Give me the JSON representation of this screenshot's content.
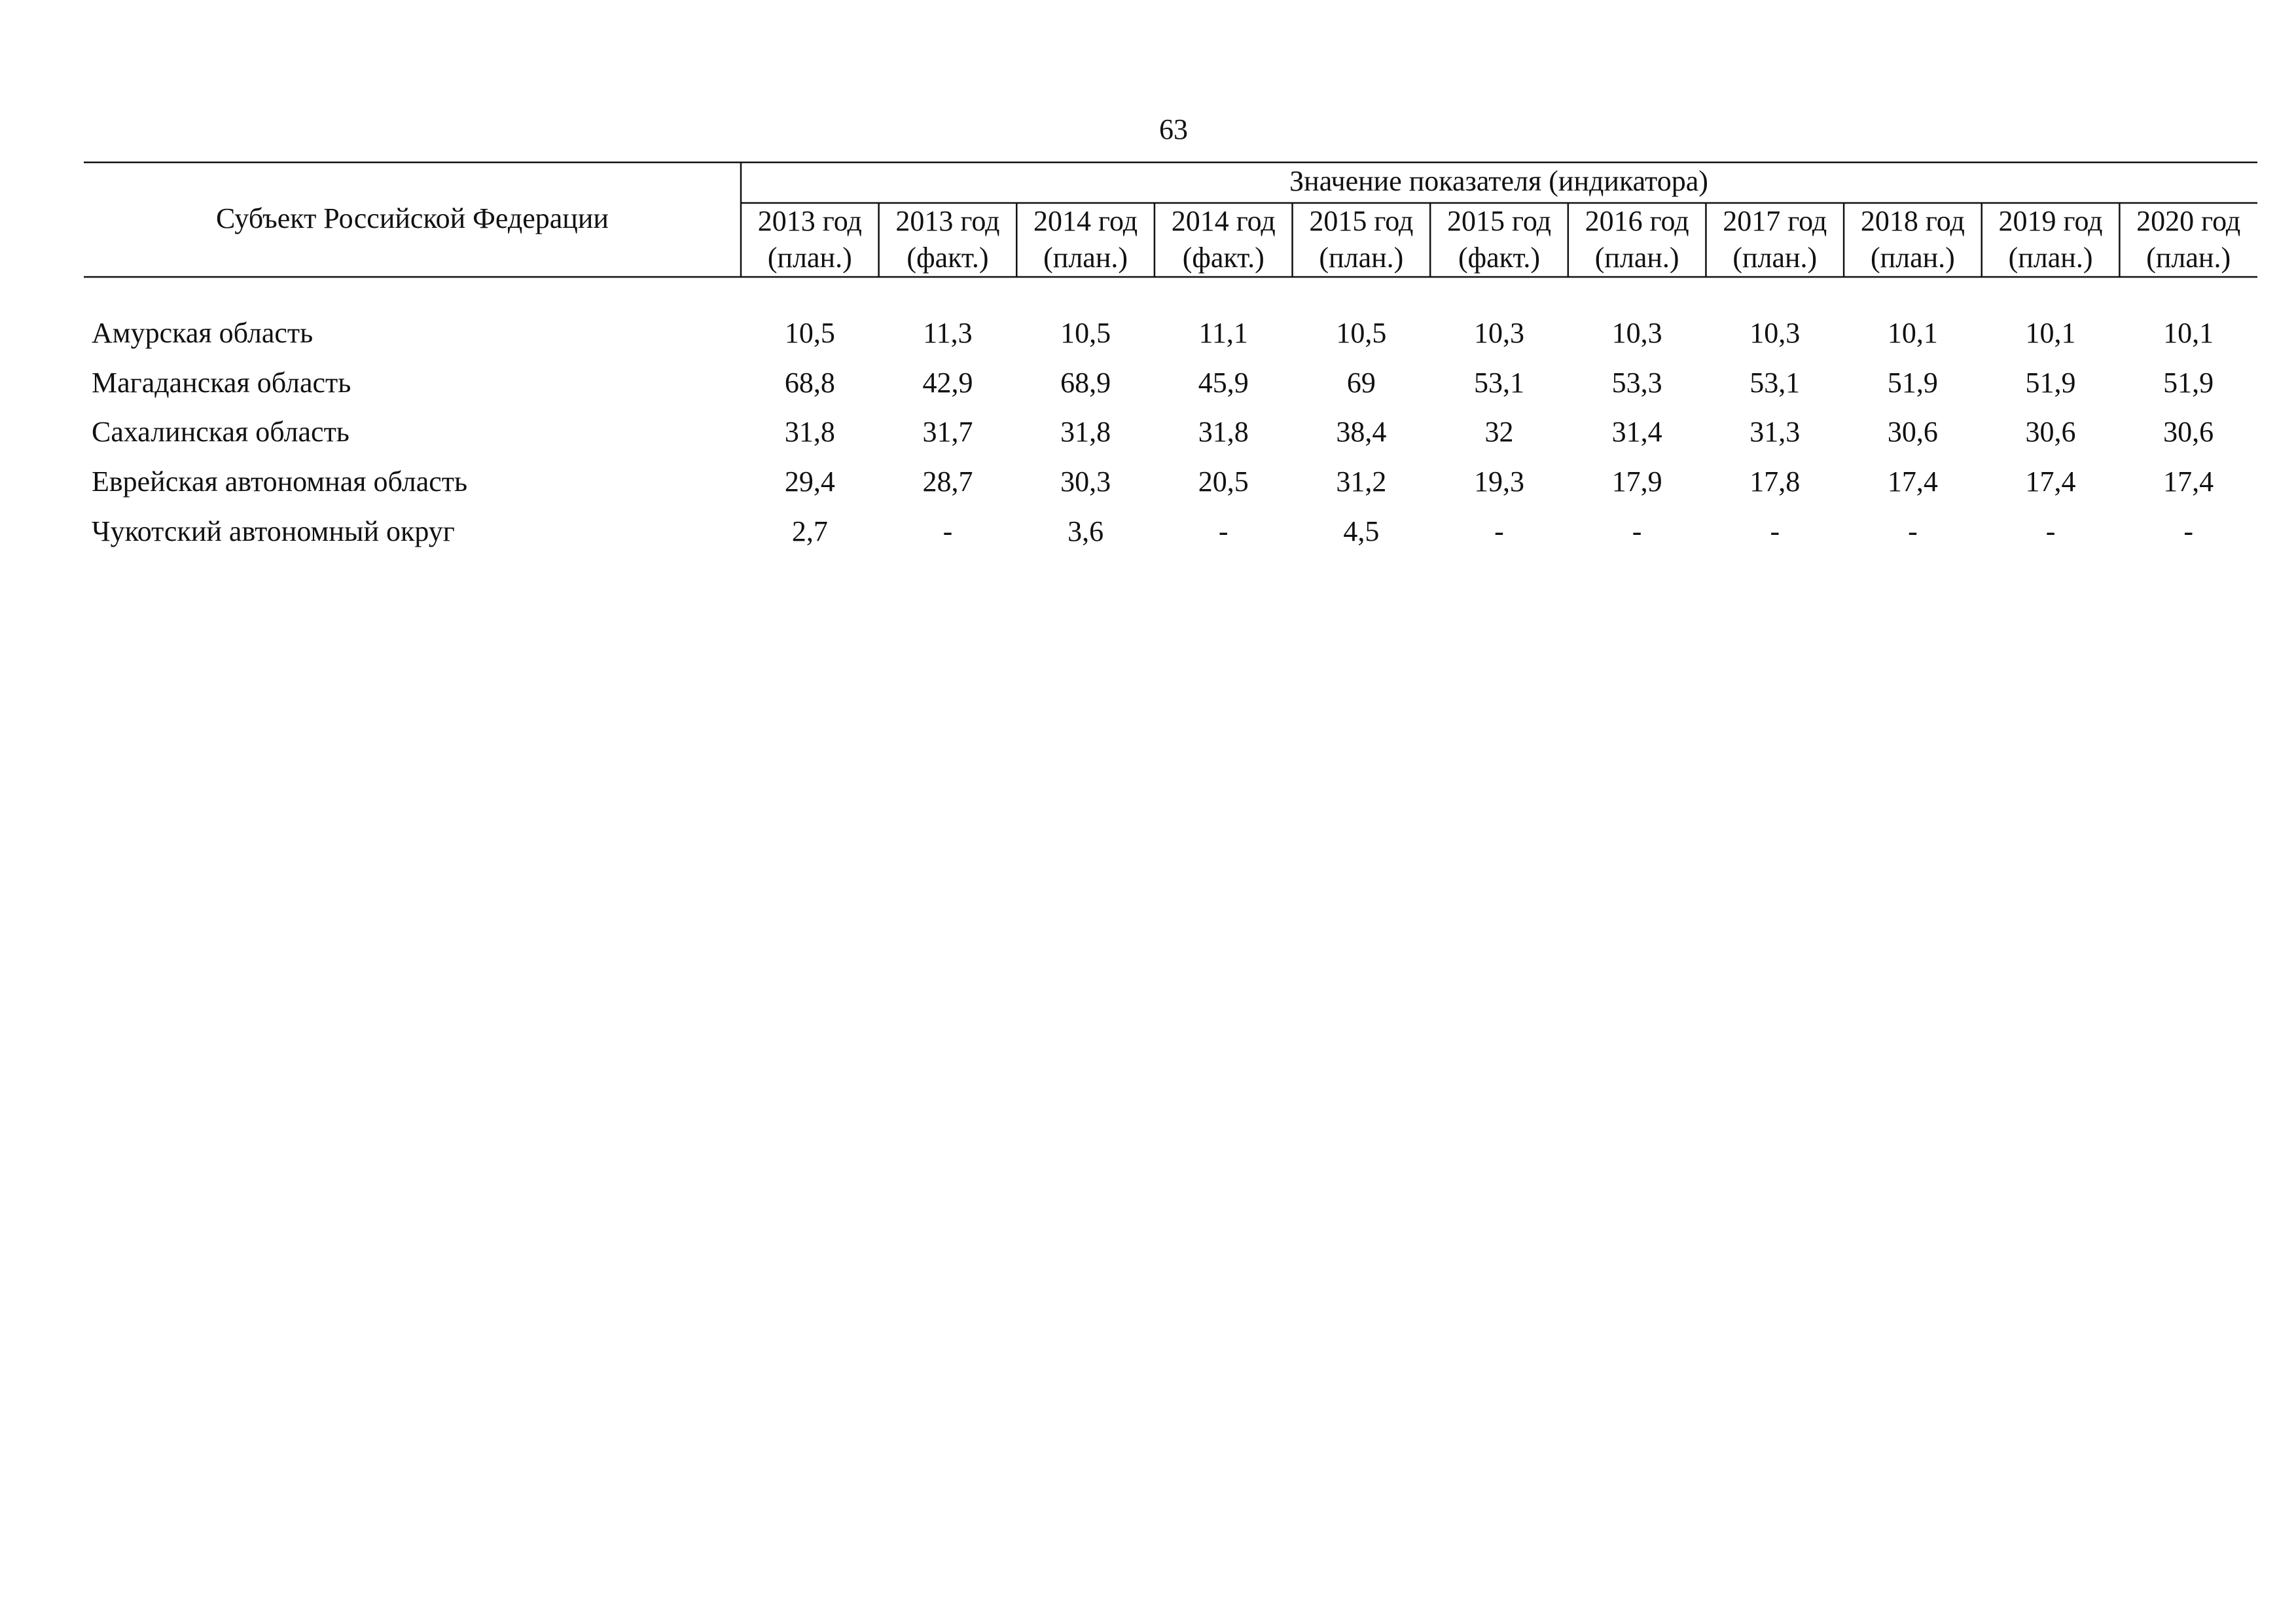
{
  "page_number": "63",
  "table": {
    "header": {
      "subject": "Субъект Российской Федерации",
      "group": "Значение показателя (индикатора)",
      "columns": [
        {
          "year": "2013 год",
          "kind": "(план.)"
        },
        {
          "year": "2013 год",
          "kind": "(факт.)"
        },
        {
          "year": "2014 год",
          "kind": "(план.)"
        },
        {
          "year": "2014 год",
          "kind": "(факт.)"
        },
        {
          "year": "2015 год",
          "kind": "(план.)"
        },
        {
          "year": "2015 год",
          "kind": "(факт.)"
        },
        {
          "year": "2016 год",
          "kind": "(план.)"
        },
        {
          "year": "2017 год",
          "kind": "(план.)"
        },
        {
          "year": "2018 год",
          "kind": "(план.)"
        },
        {
          "year": "2019 год",
          "kind": "(план.)"
        },
        {
          "year": "2020 год",
          "kind": "(план.)"
        }
      ]
    },
    "rows": [
      {
        "label": "Амурская область",
        "cells": [
          "10,5",
          "11,3",
          "10,5",
          "11,1",
          "10,5",
          "10,3",
          "10,3",
          "10,3",
          "10,1",
          "10,1",
          "10,1"
        ]
      },
      {
        "label": "Магаданская область",
        "cells": [
          "68,8",
          "42,9",
          "68,9",
          "45,9",
          "69",
          "53,1",
          "53,3",
          "53,1",
          "51,9",
          "51,9",
          "51,9"
        ]
      },
      {
        "label": "Сахалинская область",
        "cells": [
          "31,8",
          "31,7",
          "31,8",
          "31,8",
          "38,4",
          "32",
          "31,4",
          "31,3",
          "30,6",
          "30,6",
          "30,6"
        ]
      },
      {
        "label": "Еврейская автономная область",
        "cells": [
          "29,4",
          "28,7",
          "30,3",
          "20,5",
          "31,2",
          "19,3",
          "17,9",
          "17,8",
          "17,4",
          "17,4",
          "17,4"
        ]
      },
      {
        "label": "Чукотский автономный округ",
        "cells": [
          "2,7",
          "-",
          "3,6",
          "-",
          "4,5",
          "-",
          "-",
          "-",
          "-",
          "-",
          "-"
        ]
      }
    ]
  }
}
